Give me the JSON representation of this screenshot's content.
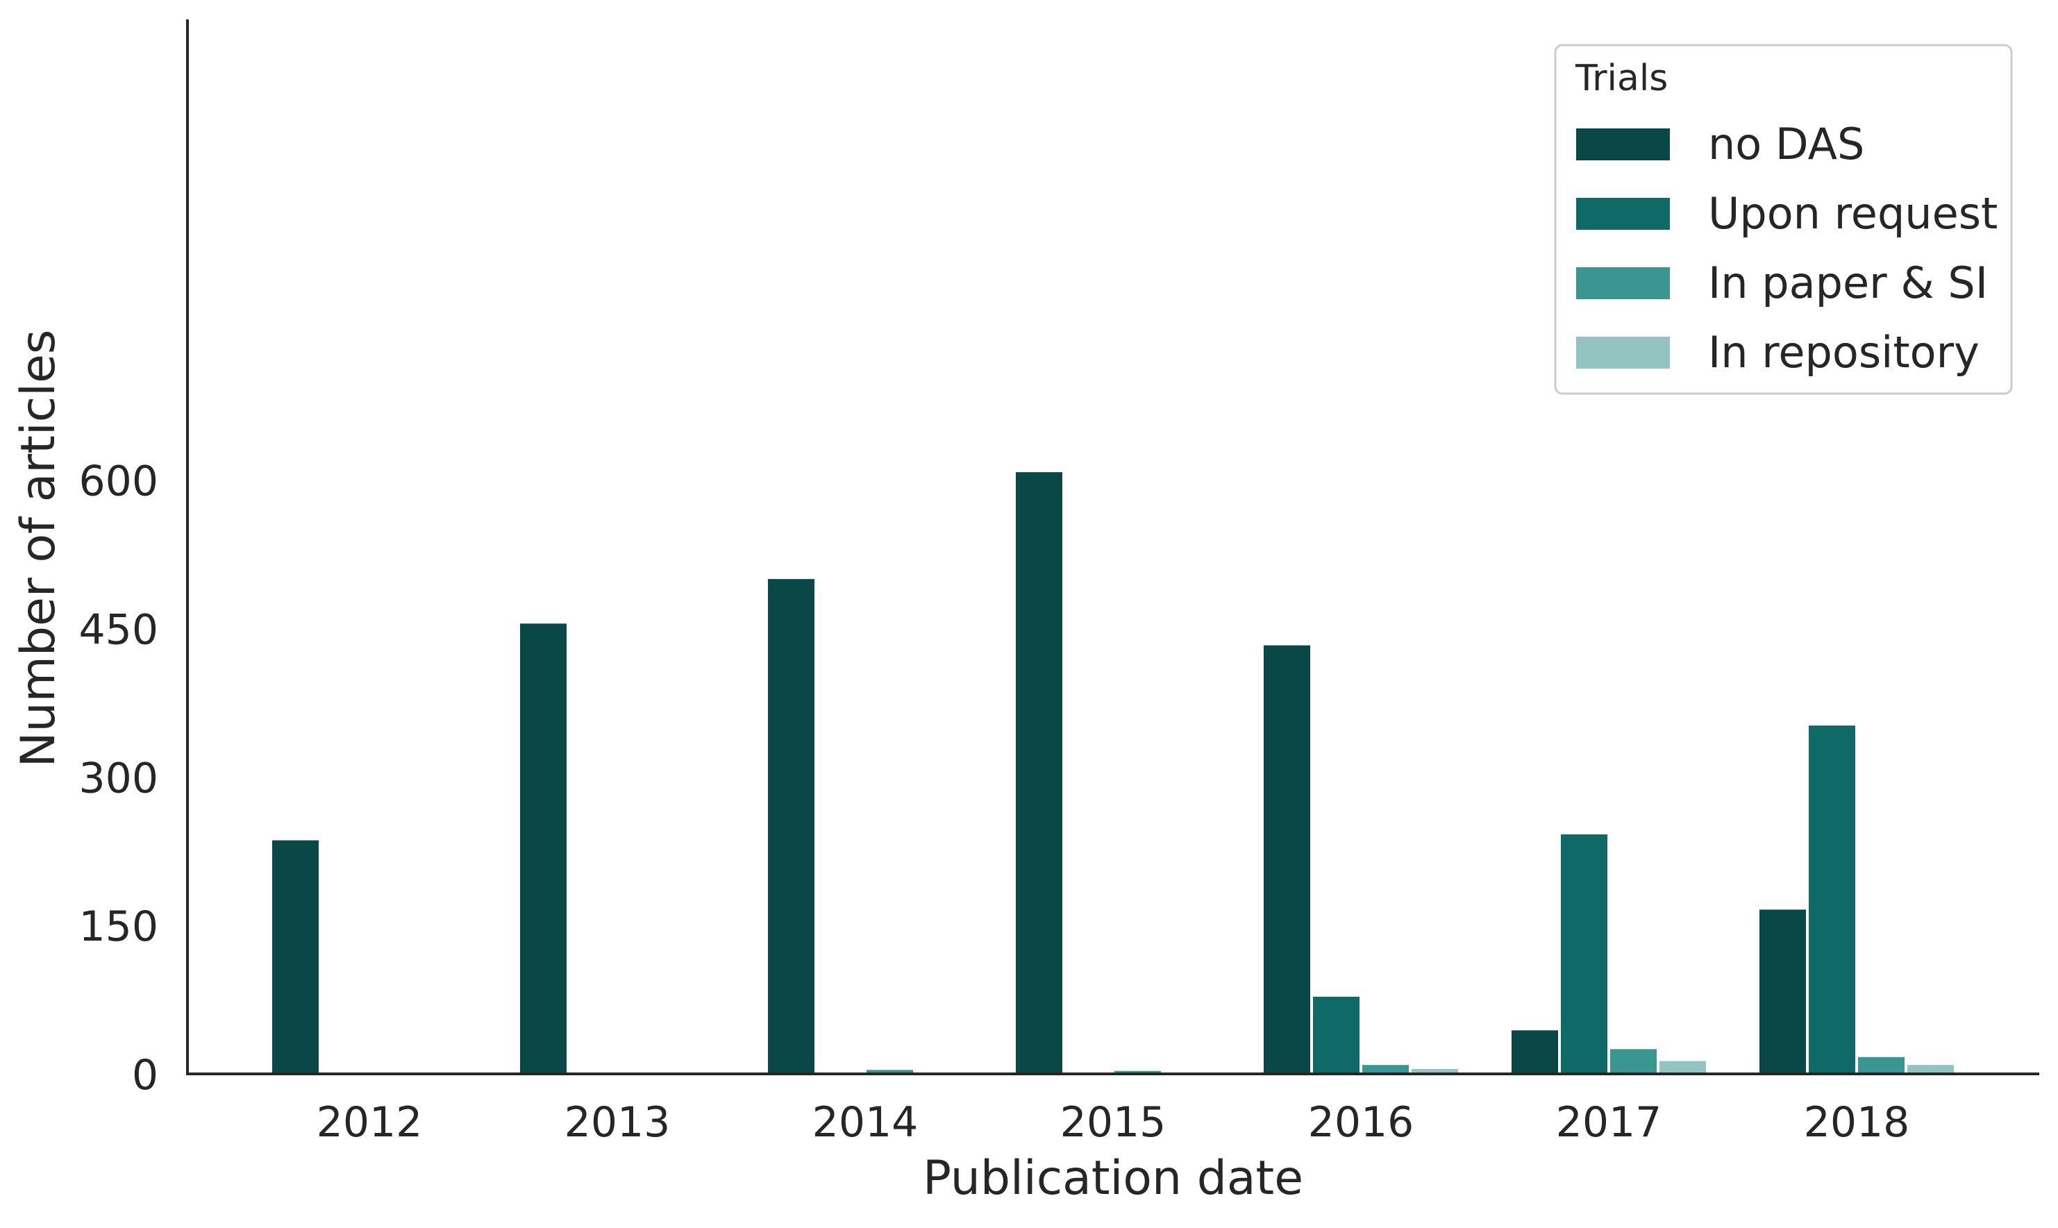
{
  "chart_data": {
    "type": "bar",
    "title": "",
    "xlabel": "Publication date",
    "ylabel": "Number of articles",
    "categories": [
      "2012",
      "2013",
      "2014",
      "2015",
      "2016",
      "2017",
      "2018"
    ],
    "series": [
      {
        "name": "no DAS",
        "color": "#0a4747",
        "values": [
          236,
          455,
          500,
          608,
          433,
          44,
          166
        ]
      },
      {
        "name": "Upon request",
        "color": "#0f6966",
        "values": [
          0,
          0,
          0,
          0,
          78,
          242,
          352
        ]
      },
      {
        "name": "In paper & SI",
        "color": "#3a9690",
        "values": [
          0,
          0,
          4,
          3,
          9,
          25,
          17
        ]
      },
      {
        "name": "In repository",
        "color": "#93c4c1",
        "values": [
          0,
          0,
          0,
          0,
          5,
          13,
          9
        ]
      }
    ],
    "yticks": [
      "0",
      "150",
      "300",
      "450",
      "600"
    ],
    "ylim": [
      0,
      640
    ],
    "legend": {
      "title": "Trials",
      "position": "top-right"
    },
    "grid": false
  }
}
